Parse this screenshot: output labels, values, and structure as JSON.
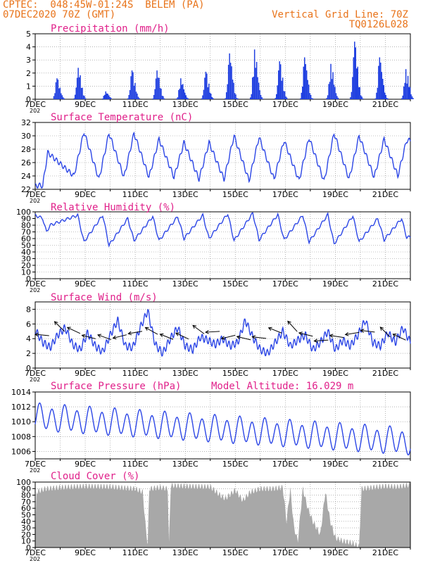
{
  "header": {
    "line1": "CPTEC:  048:45W-01:24S  BELEM (PA)",
    "line2": "07DEC2020 70Z (GMT)",
    "right1": "Vertical Grid Line: 70Z",
    "right2": "TQ0126L028"
  },
  "x_tick_labels": [
    "7DEC",
    "9DEC",
    "11DEC",
    "13DEC",
    "15DEC",
    "17DEC",
    "19DEC",
    "21DEC"
  ],
  "x_year_fragment": "202",
  "colors": {
    "line": "#2c46e6",
    "bar": "#1f3fe0",
    "cloud": "#a8a8a8",
    "title": "#e0208a",
    "header": "#e8731a",
    "arrow": "#000000"
  },
  "chart_data": [
    {
      "type": "bar",
      "title": "Precipitation (mm/h)",
      "ylim": [
        0,
        5
      ],
      "yticks": [
        0,
        1,
        2,
        3,
        4,
        5
      ],
      "daily_peak_x": [
        7.85,
        8.7,
        9.8,
        10.85,
        11.85,
        12.8,
        13.8,
        14.75,
        15.75,
        16.75,
        17.75,
        18.8,
        19.75,
        20.75,
        21.8
      ],
      "daily_peak_y": [
        1.6,
        2.4,
        0.6,
        2.2,
        2.2,
        1.6,
        2.1,
        3.5,
        3.8,
        2.9,
        3.2,
        2.7,
        4.4,
        3.2,
        2.3
      ]
    },
    {
      "type": "line",
      "title": "Surface Temperature (nC)",
      "ylim": [
        22,
        32
      ],
      "yticks": [
        22,
        24,
        26,
        28,
        30,
        32
      ],
      "daily_max_x": [
        7.5,
        8.95,
        9.95,
        10.95,
        11.95,
        12.95,
        13.95,
        14.95,
        15.95,
        16.95,
        17.95,
        18.95,
        19.95,
        20.95,
        21.85
      ],
      "daily_max_y": [
        27.5,
        30.6,
        30.4,
        30.4,
        29.5,
        29.0,
        29.0,
        30.0,
        29.8,
        29.3,
        29.7,
        30.4,
        30.0,
        29.5,
        29.3
      ],
      "daily_min_x": [
        7.3,
        8.55,
        9.55,
        10.55,
        11.55,
        12.55,
        13.55,
        14.55,
        15.55,
        16.55,
        17.55,
        18.55,
        19.55,
        20.55,
        21.5
      ],
      "daily_min_y": [
        22.5,
        24.0,
        23.5,
        23.8,
        23.8,
        23.8,
        23.5,
        23.5,
        23.3,
        23.5,
        23.3,
        23.2,
        23.5,
        23.8,
        24.0
      ]
    },
    {
      "type": "line",
      "title": "Relative Humidity (%)",
      "ylim": [
        0,
        100
      ],
      "yticks": [
        0,
        10,
        20,
        30,
        40,
        50,
        60,
        70,
        80,
        90,
        100
      ],
      "daily_max_y": [
        92,
        95,
        95,
        90,
        93,
        93,
        95,
        97,
        98,
        96,
        95,
        96,
        94,
        90,
        90
      ],
      "daily_min_y": [
        70,
        55,
        50,
        57,
        57,
        60,
        60,
        57,
        58,
        58,
        55,
        52,
        55,
        58,
        62
      ]
    },
    {
      "type": "line",
      "title": "Surface Wind (m/s)",
      "ylim": [
        0,
        9
      ],
      "yticks": [
        0,
        2,
        4,
        6,
        8
      ],
      "speed_x": [
        7,
        7.3,
        7.6,
        7.9,
        8.2,
        8.5,
        8.8,
        9.1,
        9.4,
        9.7,
        10,
        10.3,
        10.6,
        10.9,
        11.2,
        11.5,
        11.8,
        12.1,
        12.4,
        12.7,
        13,
        13.3,
        13.6,
        13.9,
        14.2,
        14.5,
        14.8,
        15.1,
        15.4,
        15.7,
        16,
        16.3,
        16.6,
        16.9,
        17.2,
        17.5,
        17.8,
        18.1,
        18.4,
        18.7,
        19,
        19.3,
        19.6,
        19.9,
        20.2,
        20.5,
        20.8,
        21.1,
        21.4,
        21.7,
        22
      ],
      "speed_y": [
        5.2,
        3.5,
        2.8,
        4.5,
        5.5,
        3.2,
        2.5,
        4.8,
        3.0,
        2.2,
        4.5,
        6.5,
        3.0,
        2.8,
        5.5,
        7.8,
        3.2,
        2.0,
        4.0,
        5.5,
        3.0,
        2.5,
        4.2,
        3.8,
        3.2,
        4.0,
        3.0,
        3.5,
        6.5,
        4.2,
        2.5,
        2.0,
        3.5,
        5.0,
        3.0,
        3.8,
        4.5,
        2.5,
        3.5,
        5.0,
        2.5,
        3.8,
        3.0,
        4.5,
        6.5,
        3.5,
        3.0,
        4.8,
        3.5,
        5.5,
        3.5
      ]
    },
    {
      "type": "line",
      "title": "Surface Pressure (hPa)",
      "annotation": "Model Altitude: 16.029 m",
      "ylim": [
        1005,
        1014
      ],
      "yticks": [
        1006,
        1008,
        1010,
        1012,
        1014
      ]
    },
    {
      "type": "area",
      "title": "Cloud Cover (%)",
      "ylim": [
        0,
        100
      ],
      "yticks": [
        0,
        10,
        20,
        30,
        40,
        50,
        60,
        70,
        80,
        90,
        100
      ]
    }
  ]
}
